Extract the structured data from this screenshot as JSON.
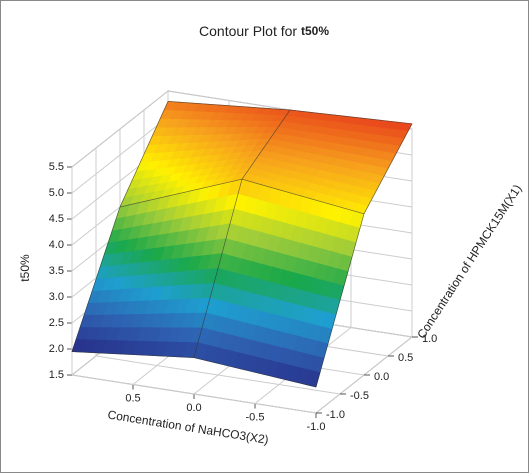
{
  "chart_data": {
    "type": "surface",
    "title": "Contour Plot for",
    "title_emphasis": "t50%",
    "zlabel": "t50%",
    "xlabel": "Concentration of NaHCO3(X2)",
    "ylabel": "Concentration of HPMCK15M(X1)",
    "x": [
      1,
      0,
      -1
    ],
    "y": [
      -1,
      0,
      1
    ],
    "z": [
      [
        1.95,
        2.2,
        2.0
      ],
      [
        4.0,
        4.9,
        4.6
      ],
      [
        5.3,
        5.5,
        5.6
      ]
    ],
    "xlim": [
      1,
      -1
    ],
    "ylim": [
      -1,
      1
    ],
    "zlim": [
      1.5,
      5.5
    ],
    "xticks": [
      0.5,
      {
        "value": 0,
        "label": "0.0"
      },
      -0.5,
      {
        "value": -1,
        "label": "-1.0"
      }
    ],
    "yticks": [
      {
        "value": 1,
        "label": "1.0"
      },
      0.5,
      {
        "value": 0,
        "label": "0.0"
      },
      -0.5,
      {
        "value": -1,
        "label": "-1.0"
      }
    ],
    "zticks": [
      1.5,
      {
        "value": 2,
        "label": "2.0"
      },
      2.5,
      {
        "value": 3,
        "label": "3.0"
      },
      3.5,
      {
        "value": 4,
        "label": "4.0"
      },
      4.5,
      {
        "value": 5,
        "label": "5.0"
      },
      5.5
    ],
    "grid": true,
    "colormap": [
      "#262a86",
      "#2f5fb0",
      "#1e9fd0",
      "#1aa84a",
      "#9ccb3b",
      "#fff200",
      "#f7a21d",
      "#e8401c"
    ]
  }
}
